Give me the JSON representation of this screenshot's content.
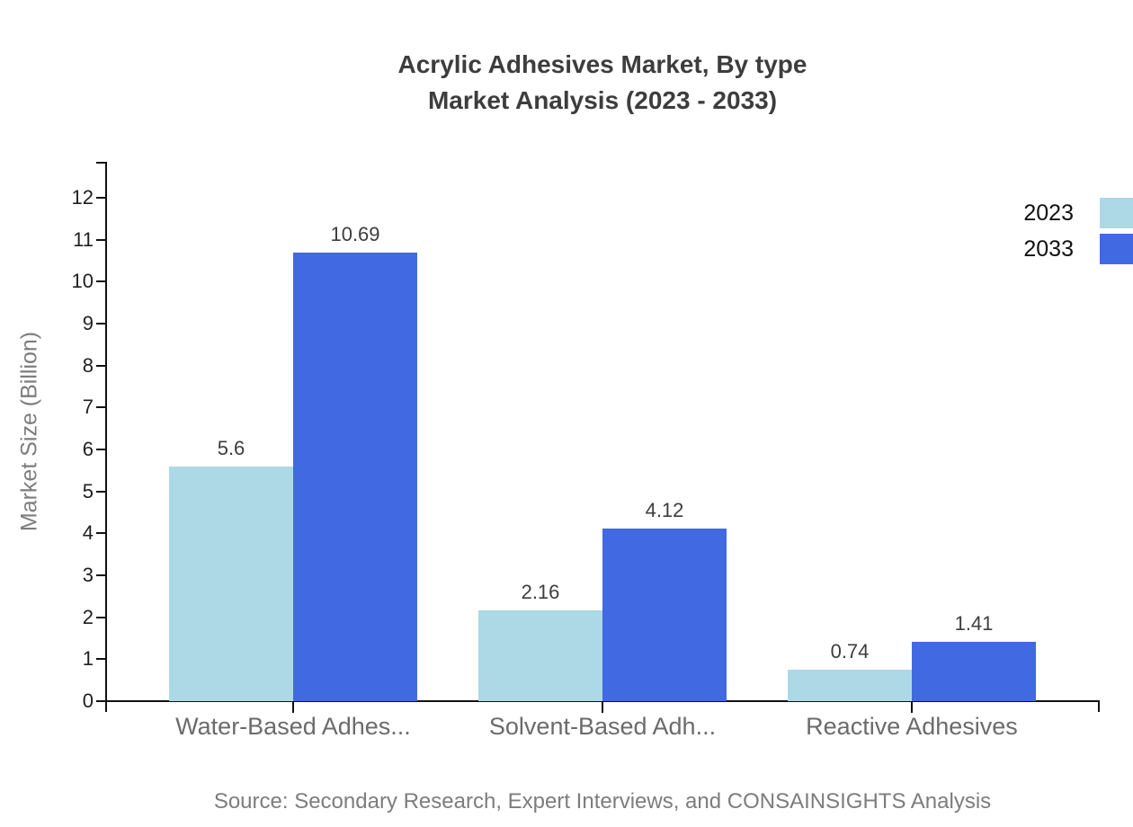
{
  "header": {
    "title": "Acrylic Adhesives Market, By type",
    "subtitle": "Market Analysis (2023 - 2033)"
  },
  "source": "Source: Secondary Research, Expert Interviews, and CONSAINSIGHTS Analysis",
  "chart_data": {
    "type": "bar",
    "title": "Acrylic Adhesives Market, By type",
    "subtitle": "Market Analysis (2023 - 2033)",
    "categories": [
      "Water-Based Adhes...",
      "Solvent-Based Adh...",
      "Reactive Adhesives"
    ],
    "series": [
      {
        "name": "2023",
        "color": "#ADD8E6",
        "values": [
          5.6,
          2.16,
          0.74
        ]
      },
      {
        "name": "2033",
        "color": "#4169E1",
        "values": [
          10.69,
          4.12,
          1.41
        ]
      }
    ],
    "value_labels": [
      "5.6",
      "10.69",
      "2.16",
      "4.12",
      "0.74",
      "1.41"
    ],
    "xlabel": "",
    "ylabel": "Market Size (Billion)",
    "ylim": [
      0,
      12
    ],
    "ytick_step": 1,
    "ytick_labels": [
      "0",
      "1",
      "2",
      "3",
      "4",
      "5",
      "6",
      "7",
      "8",
      "9",
      "10",
      "11",
      "12"
    ],
    "grid": false,
    "legend_position": "right",
    "axis_color": "#111111",
    "text_colors": {
      "title": "#3d3d3d",
      "ticks": "#1f1f1f",
      "category_labels": "#6b6b6b",
      "value_labels": "#3d3d3d",
      "axis_title": "#7d7d7d",
      "source": "#7d7d7d"
    }
  }
}
